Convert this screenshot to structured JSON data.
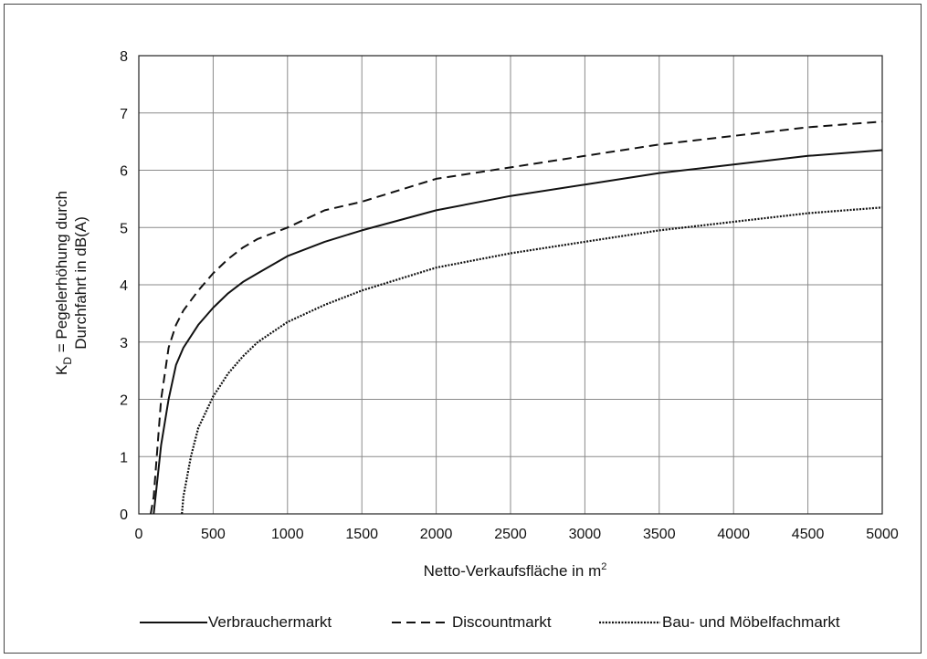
{
  "chart_data": {
    "type": "line",
    "xlabel": "Netto-Verkaufsfläche in m",
    "xlabel_sup": "2",
    "ylabel_line1_main": "K",
    "ylabel_line1_sub": "D",
    "ylabel_line1_rest": " = Pegelerhöhung durch",
    "ylabel_line2": "Durchfahrt in dB(A)",
    "xlim": [
      0,
      5000
    ],
    "ylim": [
      0,
      8
    ],
    "xticks": [
      0,
      500,
      1000,
      1500,
      2000,
      2500,
      3000,
      3500,
      4000,
      4500,
      5000
    ],
    "yticks": [
      0,
      1,
      2,
      3,
      4,
      5,
      6,
      7,
      8
    ],
    "grid": true,
    "legend_position": "bottom",
    "series": [
      {
        "name": "Verbrauchermarkt",
        "style": "solid",
        "x": [
          100,
          150,
          200,
          250,
          300,
          400,
          500,
          600,
          700,
          800,
          1000,
          1250,
          1500,
          2000,
          2500,
          3000,
          3500,
          4000,
          4500,
          5000
        ],
        "y": [
          0.0,
          1.2,
          2.0,
          2.6,
          2.9,
          3.3,
          3.6,
          3.85,
          4.05,
          4.2,
          4.5,
          4.75,
          4.95,
          5.3,
          5.55,
          5.75,
          5.95,
          6.1,
          6.25,
          6.35
        ]
      },
      {
        "name": "Discountmarkt",
        "style": "dashed",
        "x": [
          80,
          100,
          150,
          200,
          250,
          300,
          400,
          500,
          600,
          700,
          800,
          1000,
          1250,
          1500,
          2000,
          2500,
          3000,
          3500,
          4000,
          4500,
          5000
        ],
        "y": [
          0.0,
          0.3,
          2.0,
          2.9,
          3.3,
          3.55,
          3.9,
          4.2,
          4.45,
          4.65,
          4.8,
          5.0,
          5.3,
          5.45,
          5.85,
          6.05,
          6.25,
          6.45,
          6.6,
          6.75,
          6.85
        ]
      },
      {
        "name": "Bau- und Möbelfachmarkt",
        "style": "dotted",
        "x": [
          290,
          300,
          350,
          400,
          500,
          600,
          700,
          800,
          1000,
          1250,
          1500,
          2000,
          2500,
          3000,
          3500,
          4000,
          4500,
          5000
        ],
        "y": [
          0.0,
          0.3,
          1.0,
          1.5,
          2.05,
          2.45,
          2.75,
          3.0,
          3.35,
          3.65,
          3.9,
          4.3,
          4.55,
          4.75,
          4.95,
          5.1,
          5.25,
          5.35
        ]
      }
    ]
  }
}
